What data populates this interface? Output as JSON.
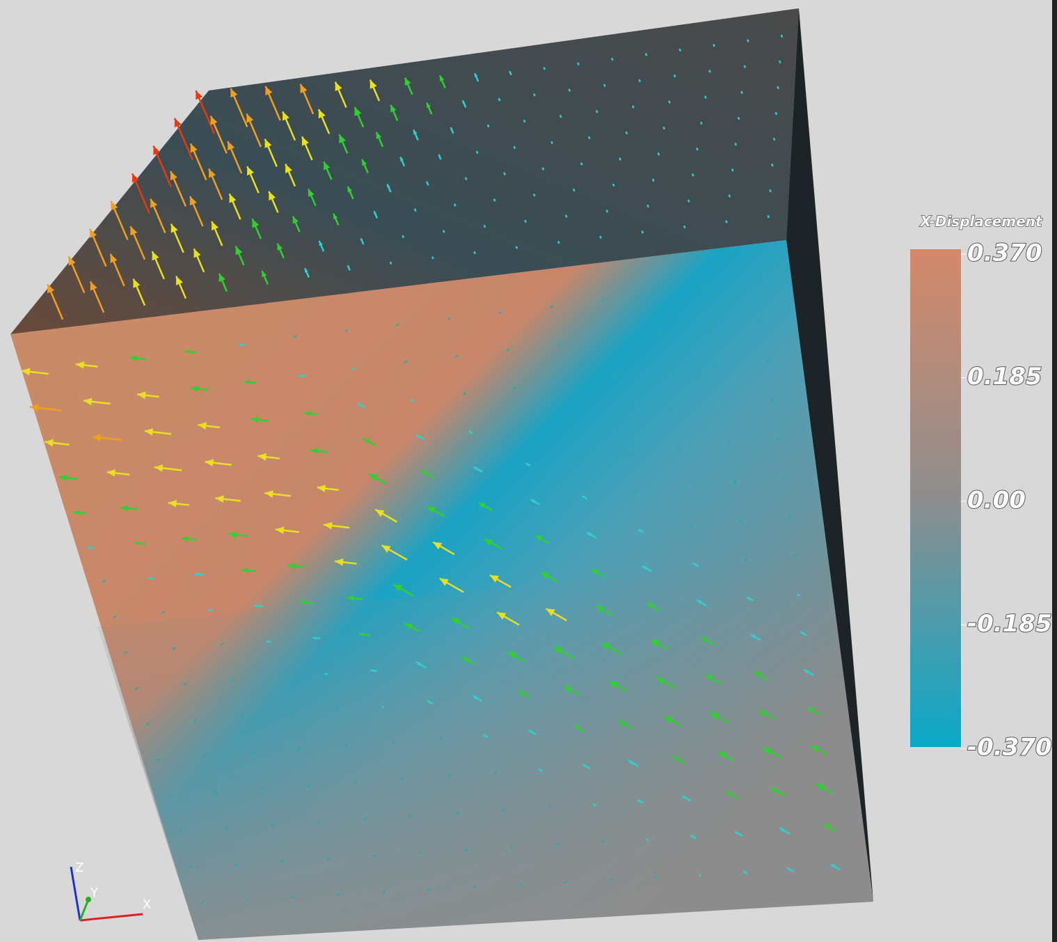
{
  "colorbar": {
    "title": "X-Displacement",
    "range": [
      -0.37,
      0.37
    ],
    "ticks": [
      {
        "value": 0.37,
        "label": "0.370"
      },
      {
        "value": 0.185,
        "label": "0.185"
      },
      {
        "value": 0,
        "label": "0.00"
      },
      {
        "value": -0.185,
        "label": "-0.185"
      },
      {
        "value": -0.37,
        "label": "-0.370"
      }
    ]
  },
  "axes": {
    "x": "X",
    "y": "Y",
    "z": "Z"
  }
}
